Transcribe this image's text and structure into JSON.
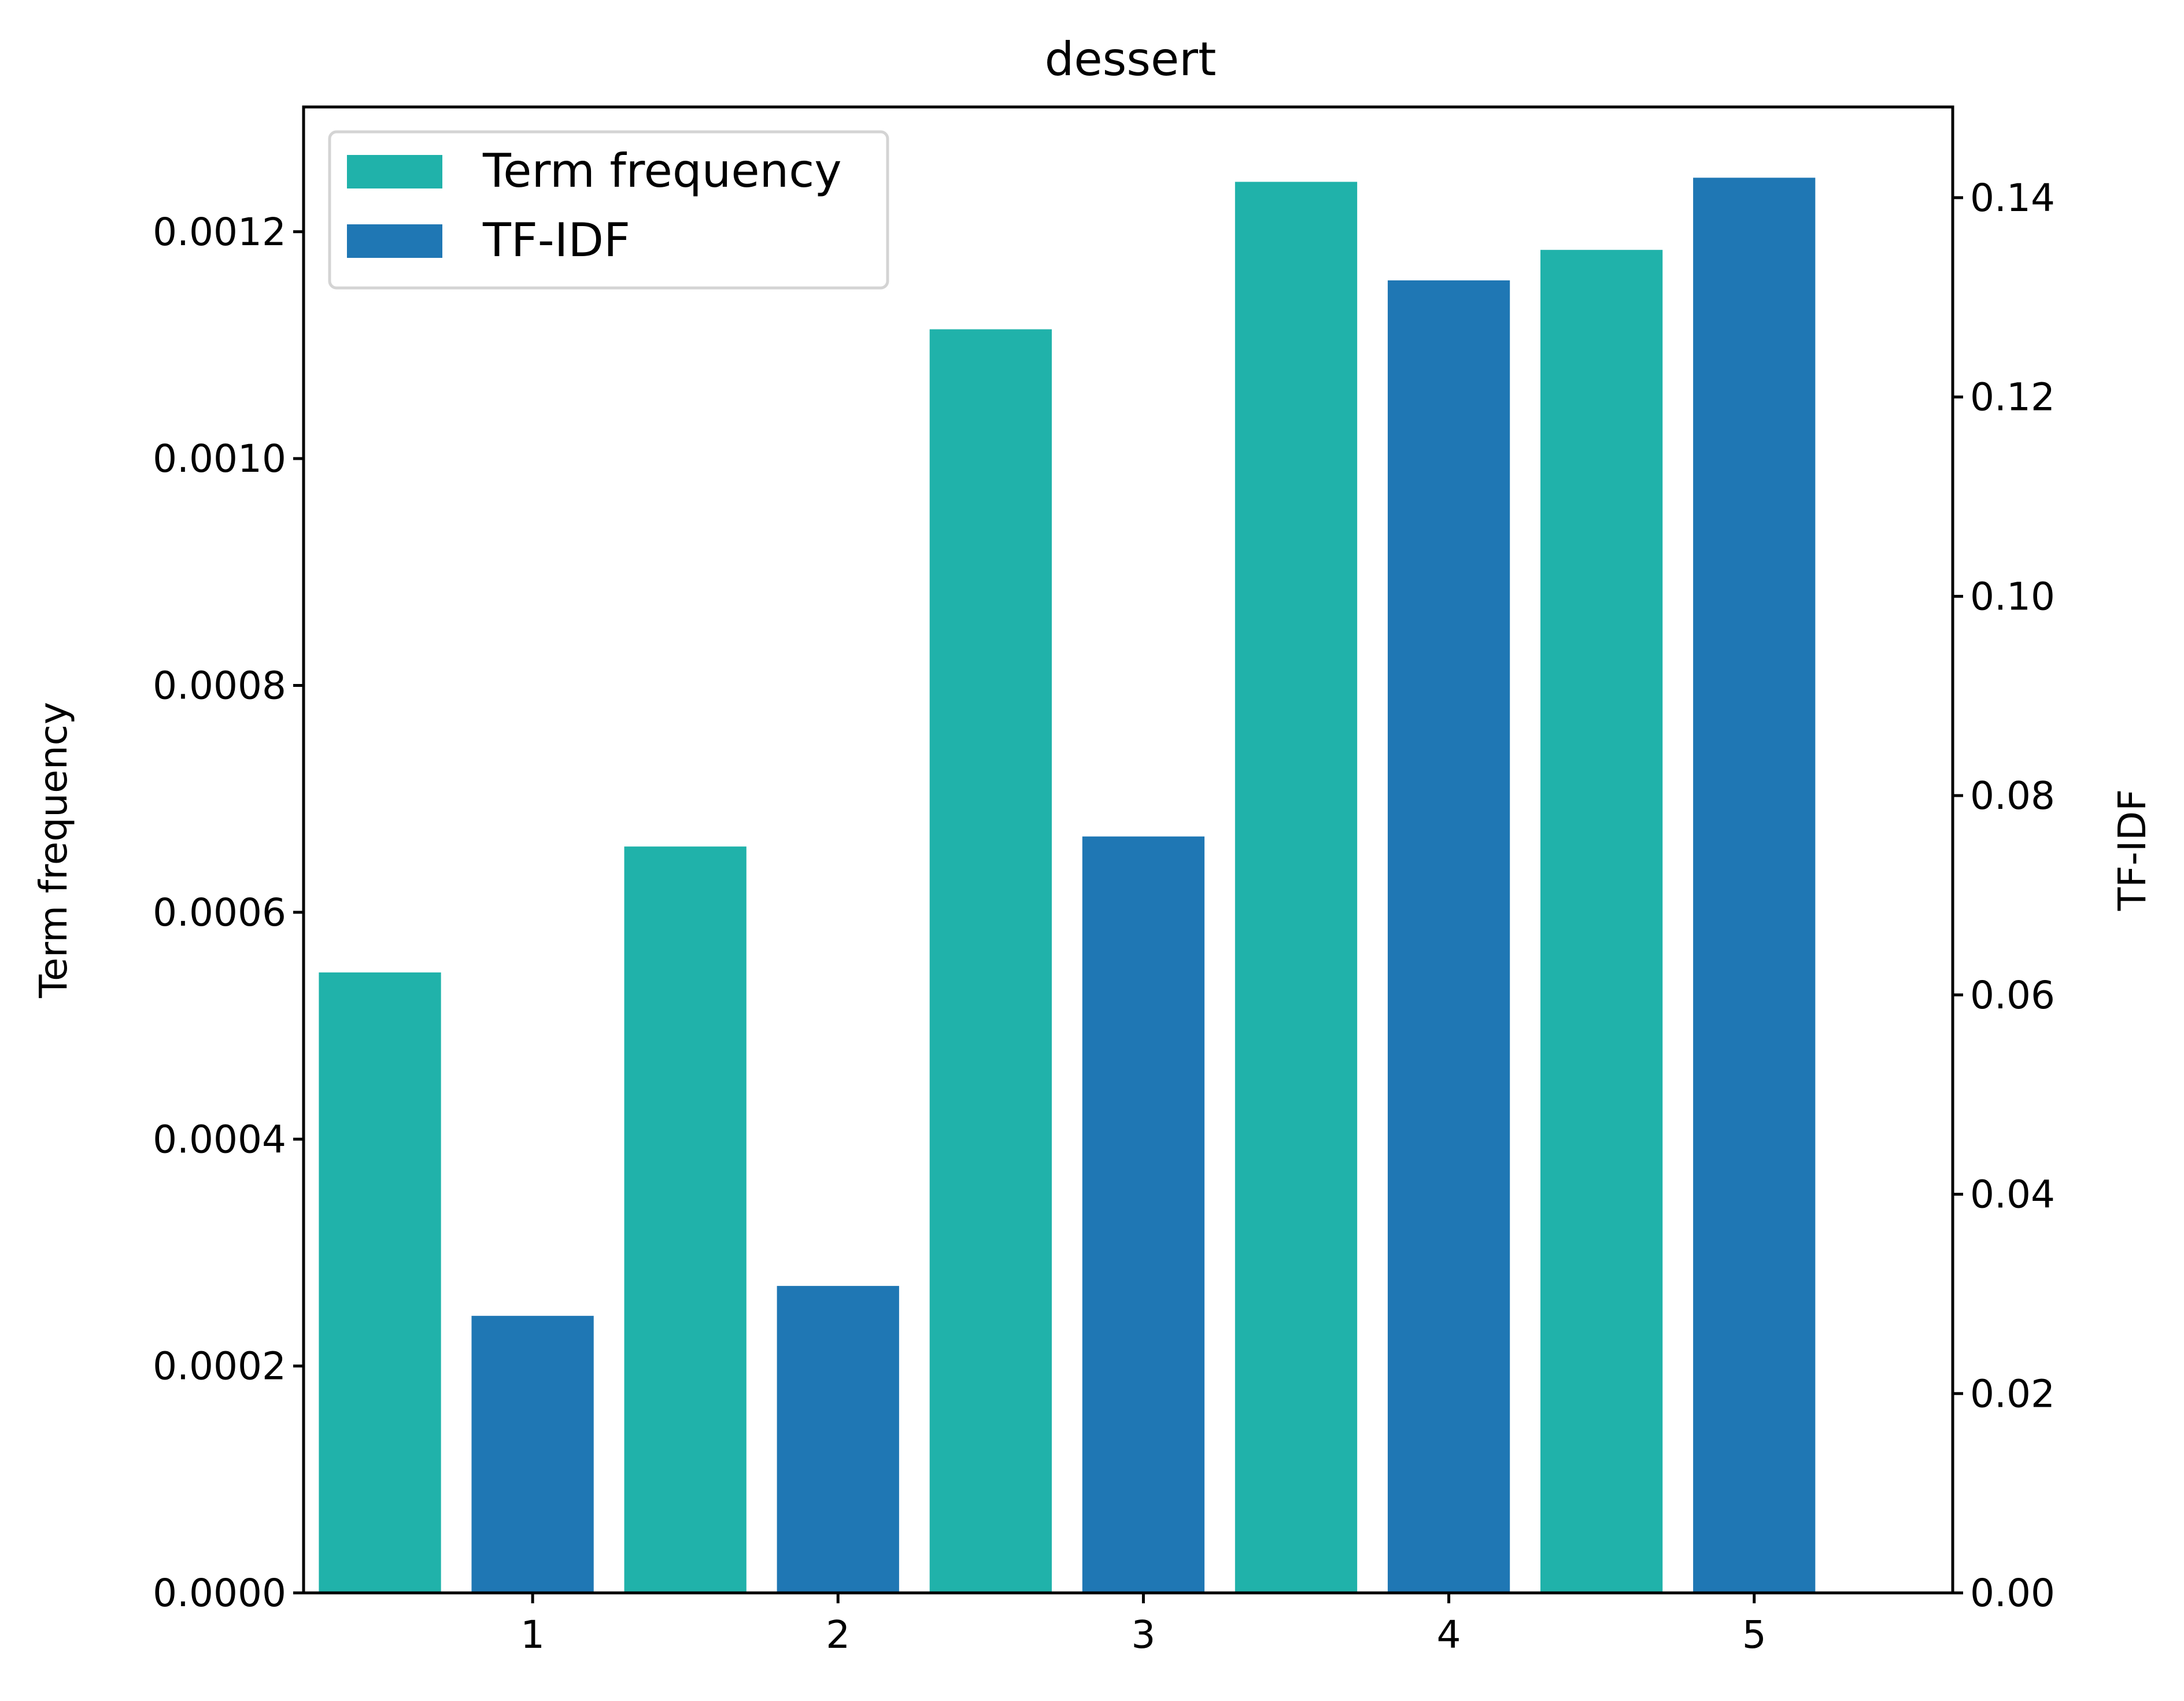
{
  "chart_data": {
    "type": "bar",
    "title": "dessert",
    "categories": [
      "1",
      "2",
      "3",
      "4",
      "5"
    ],
    "xlabel": "",
    "series": [
      {
        "name": "Term frequency",
        "axis": "left",
        "color": "#20b2aa",
        "values": [
          0.000547,
          0.000658,
          0.001114,
          0.001244,
          0.001184
        ]
      },
      {
        "name": "TF-IDF",
        "axis": "right",
        "color": "#1f77b4",
        "values": [
          0.0278,
          0.0308,
          0.0759,
          0.1317,
          0.142
        ]
      }
    ],
    "y_left": {
      "label": "Term frequency",
      "ylim": [
        0,
        0.00131
      ],
      "ticks": [
        "0.0000",
        "0.0002",
        "0.0004",
        "0.0006",
        "0.0008",
        "0.0010",
        "0.0012"
      ],
      "tick_values": [
        0,
        0.0002,
        0.0004,
        0.0006,
        0.0008,
        0.001,
        0.0012
      ]
    },
    "y_right": {
      "label": "TF-IDF",
      "ylim": [
        0,
        0.1491
      ],
      "ticks": [
        "0.00",
        "0.02",
        "0.04",
        "0.06",
        "0.08",
        "0.10",
        "0.12",
        "0.14"
      ],
      "tick_values": [
        0,
        0.02,
        0.04,
        0.06,
        0.08,
        0.1,
        0.12,
        0.14
      ]
    },
    "xlim": [
      0.25,
      5.65
    ],
    "grid": false,
    "legend": {
      "placement": "top-left",
      "entries": [
        "Term frequency",
        "TF-IDF"
      ]
    }
  }
}
